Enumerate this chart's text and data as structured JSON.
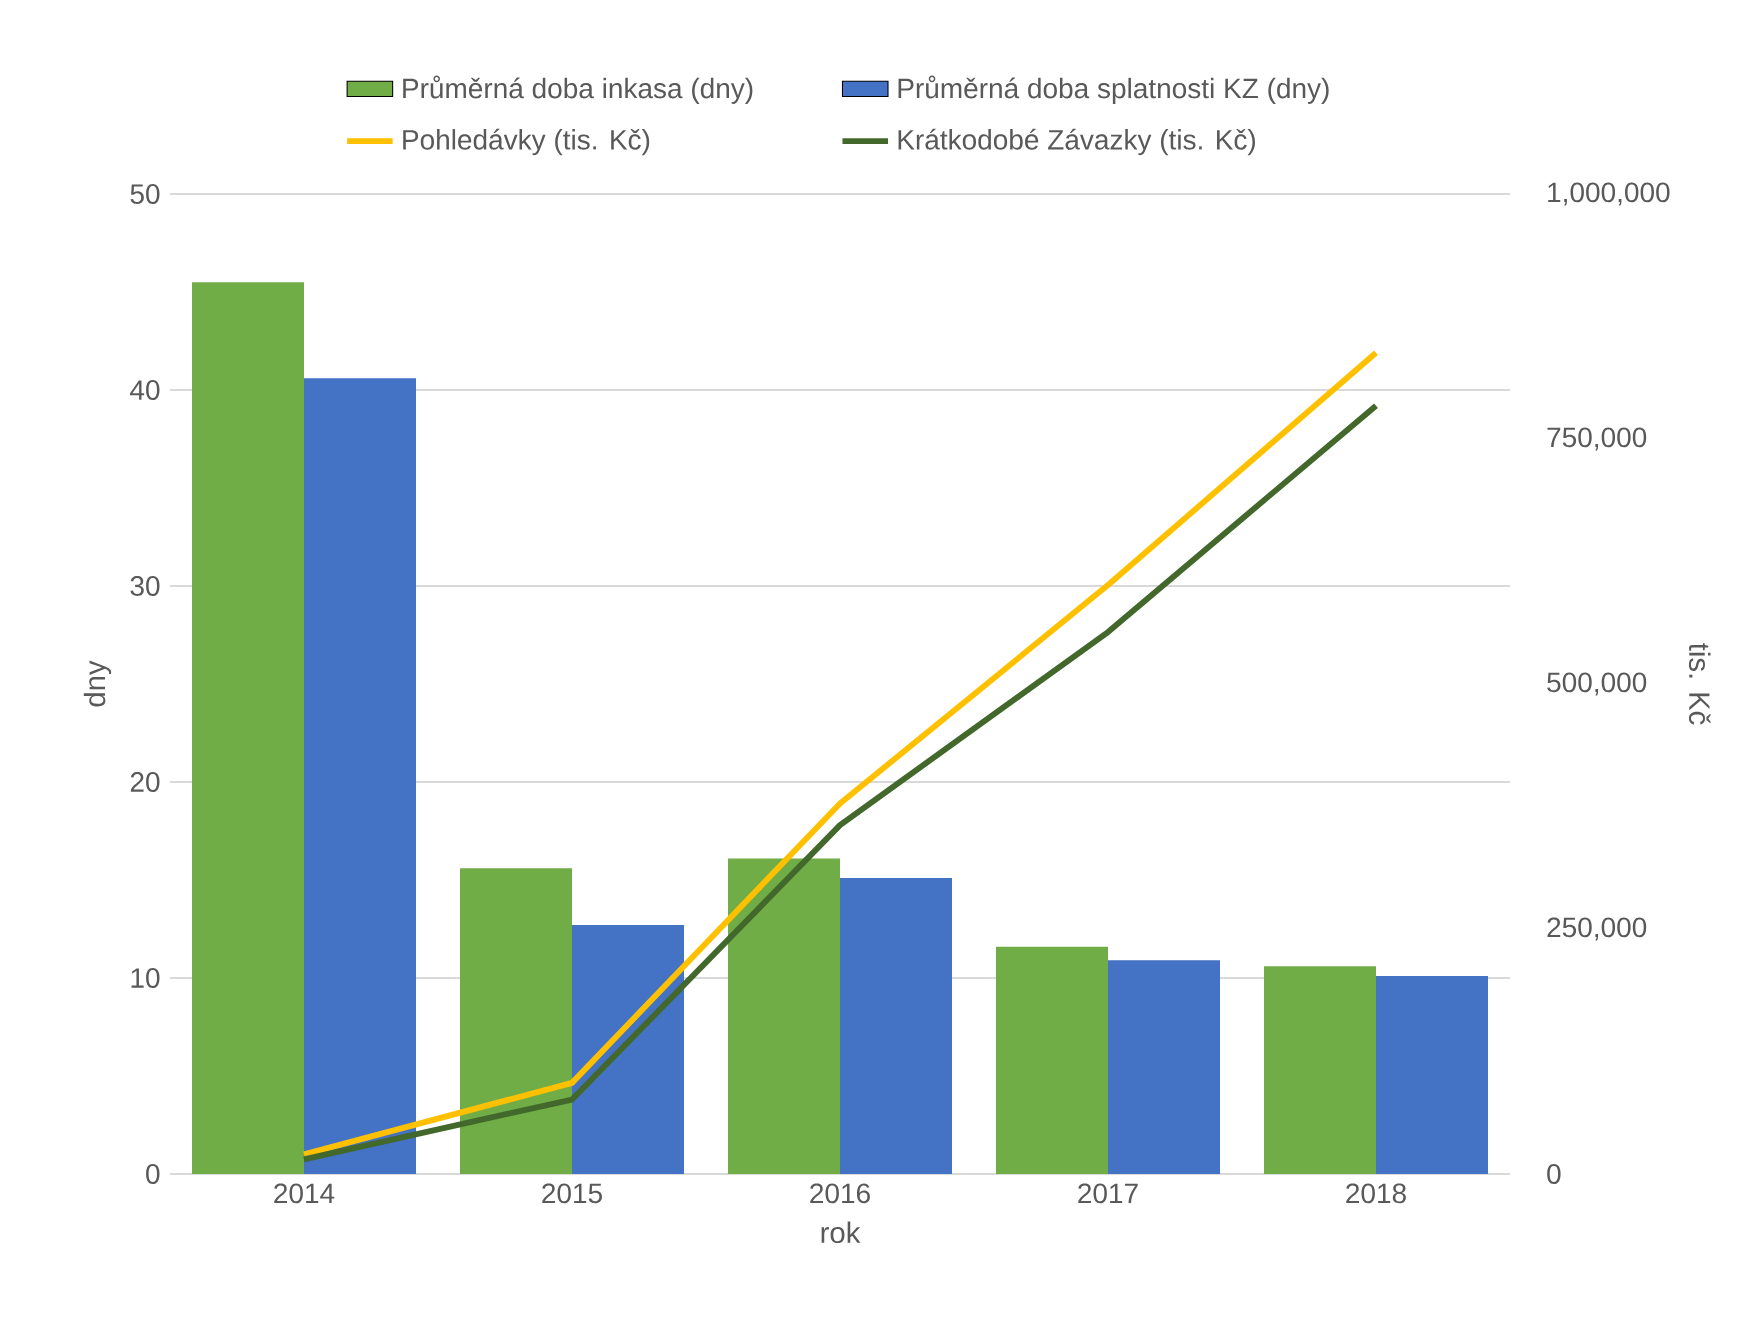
{
  "chart_data": {
    "type": "bar",
    "categories": [
      "2014",
      "2015",
      "2016",
      "2017",
      "2018"
    ],
    "xlabel": "rok",
    "ylabel": "dny",
    "y2label": "tis. Kč",
    "ylim": [
      0,
      50
    ],
    "yticks": [
      0,
      10,
      20,
      30,
      40,
      50
    ],
    "y2lim": [
      0,
      1000000
    ],
    "y2ticks": [
      {
        "value": 0,
        "label": "0"
      },
      {
        "value": 250000,
        "label": "250,000"
      },
      {
        "value": 500000,
        "label": "500,000"
      },
      {
        "value": 750000,
        "label": "750,000"
      },
      {
        "value": 1000000,
        "label": "1,000,000"
      }
    ],
    "grid": "y",
    "legend": "top",
    "series": [
      {
        "name": "Průměrná doba inkasa (dny)",
        "color": "#70ad47",
        "values": [
          45.5,
          15.6,
          16.1,
          11.6,
          10.6
        ]
      },
      {
        "name": "Průměrná doba splatnosti KZ (dny)",
        "color": "#4472c4",
        "values": [
          40.6,
          12.7,
          15.1,
          10.9,
          10.1
        ]
      },
      {
        "name": "Pohledávky (tis. Kč)",
        "type": "line",
        "axis": "y2",
        "color": "#ffc000",
        "values": [
          20000,
          93000,
          378000,
          601000,
          838000
        ]
      },
      {
        "name": "Krátkodobé Závazky (tis. Kč)",
        "type": "line",
        "axis": "y2",
        "color": "#43682b",
        "values": [
          15000,
          76000,
          356000,
          553000,
          784000
        ]
      }
    ]
  }
}
